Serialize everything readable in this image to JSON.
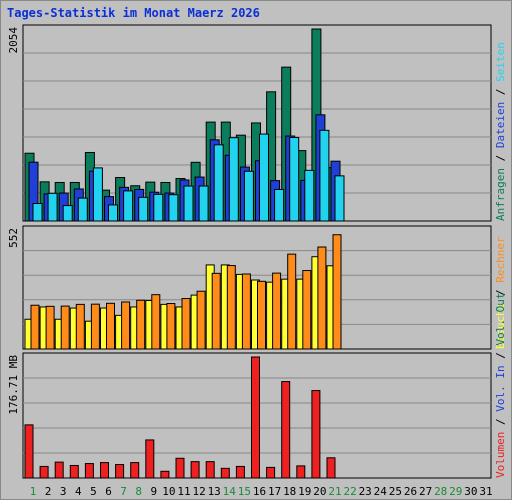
{
  "chart_data": [
    {
      "type": "bar",
      "title": "Tages-Statistik im Monat Maerz 2026",
      "panel": "top",
      "ymax_label": "2054",
      "ylim": [
        0,
        2054
      ],
      "grid": true,
      "categories": [
        "1",
        "2",
        "3",
        "4",
        "5",
        "6",
        "7",
        "8",
        "9",
        "10",
        "11",
        "12",
        "13",
        "14",
        "15",
        "16",
        "17",
        "18",
        "19",
        "20",
        "21",
        "22",
        "23",
        "24",
        "25",
        "26",
        "27",
        "28",
        "29",
        "30",
        "31"
      ],
      "legend_right": [
        {
          "name": "Anfragen",
          "color": "#0c7d5c"
        },
        {
          "name": "Dateien",
          "color": "#1f3fd6"
        },
        {
          "name": "Seiten",
          "color": "#22d3f0"
        }
      ],
      "series": [
        {
          "name": "Anfragen",
          "color": "#0c7d5c",
          "values": [
            725,
            419,
            412,
            412,
            733,
            330,
            465,
            377,
            416,
            412,
            454,
            628,
            1058,
            1058,
            918,
            1049,
            1382,
            1646,
            753,
            2054,
            573,
            null,
            null,
            null,
            null,
            null,
            null,
            null,
            null,
            null,
            null
          ]
        },
        {
          "name": "Dateien",
          "color": "#1f3fd6",
          "values": [
            629,
            290,
            299,
            343,
            533,
            261,
            360,
            338,
            308,
            299,
            439,
            470,
            869,
            703,
            577,
            645,
            432,
            909,
            435,
            1136,
            640,
            null,
            null,
            null,
            null,
            null,
            null,
            null,
            null,
            null,
            null
          ]
        },
        {
          "name": "Seiten",
          "color": "#22d3f0",
          "values": [
            187,
            296,
            165,
            245,
            568,
            172,
            322,
            253,
            285,
            281,
            374,
            374,
            815,
            891,
            532,
            930,
            337,
            893,
            542,
            970,
            483,
            null,
            null,
            null,
            null,
            null,
            null,
            null,
            null,
            null,
            null
          ]
        }
      ]
    },
    {
      "type": "bar",
      "panel": "middle",
      "ymax_label": "552",
      "ylim": [
        0,
        552
      ],
      "grid": true,
      "legend_right": [
        {
          "name": "Besuche",
          "color": "#ffff33"
        },
        {
          "name": "Rechner",
          "color": "#ff8c1a"
        }
      ],
      "series": [
        {
          "name": "Besuche",
          "color": "#ffff33",
          "values": [
            138,
            195,
            138,
            190,
            129,
            190,
            156,
            195,
            225,
            207,
            195,
            250,
            390,
            390,
            346,
            320,
            310,
            324,
            324,
            428,
            386,
            null,
            null,
            null,
            null,
            null,
            null,
            null,
            null,
            null,
            null
          ]
        },
        {
          "name": "Rechner",
          "color": "#ff8c1a",
          "values": [
            203,
            198,
            199,
            207,
            208,
            212,
            218,
            226,
            252,
            211,
            234,
            268,
            351,
            387,
            348,
            314,
            352,
            440,
            364,
            473,
            530,
            null,
            null,
            null,
            null,
            null,
            null,
            null,
            null,
            null,
            null
          ]
        }
      ]
    },
    {
      "type": "bar",
      "panel": "bottom",
      "ymax_label": "176.71 MB",
      "ylim": [
        0,
        176.71
      ],
      "grid": true,
      "legend_right": [
        {
          "name": "Volumen",
          "color": "#ee2020"
        },
        {
          "name": "Vol. In",
          "color": "#1f3fd6"
        },
        {
          "name": "Vol. Out",
          "color": "#0c7d5c"
        }
      ],
      "series": [
        {
          "name": "Volumen",
          "color": "#ee2020",
          "values": [
            77.6,
            16.9,
            23.2,
            18.3,
            21.1,
            22.5,
            19.7,
            22.5,
            55.6,
            9.8,
            28.8,
            23.9,
            23.9,
            14.1,
            16.9,
            176.7,
            15.5,
            140.8,
            17.7,
            127.7,
            29.5,
            null,
            null,
            null,
            null,
            null,
            null,
            null,
            null,
            null,
            null
          ]
        }
      ]
    }
  ],
  "x_axis_labels": [
    {
      "label": "1",
      "weekend": true
    },
    {
      "label": "2",
      "weekend": false
    },
    {
      "label": "3",
      "weekend": false
    },
    {
      "label": "4",
      "weekend": false
    },
    {
      "label": "5",
      "weekend": false
    },
    {
      "label": "6",
      "weekend": false
    },
    {
      "label": "7",
      "weekend": true
    },
    {
      "label": "8",
      "weekend": true
    },
    {
      "label": "9",
      "weekend": false
    },
    {
      "label": "10",
      "weekend": false
    },
    {
      "label": "11",
      "weekend": false
    },
    {
      "label": "12",
      "weekend": false
    },
    {
      "label": "13",
      "weekend": false
    },
    {
      "label": "14",
      "weekend": true
    },
    {
      "label": "15",
      "weekend": true
    },
    {
      "label": "16",
      "weekend": false
    },
    {
      "label": "17",
      "weekend": false
    },
    {
      "label": "18",
      "weekend": false
    },
    {
      "label": "19",
      "weekend": false
    },
    {
      "label": "20",
      "weekend": false
    },
    {
      "label": "21",
      "weekend": true
    },
    {
      "label": "22",
      "weekend": true
    },
    {
      "label": "23",
      "weekend": false
    },
    {
      "label": "24",
      "weekend": false
    },
    {
      "label": "25",
      "weekend": false
    },
    {
      "label": "26",
      "weekend": false
    },
    {
      "label": "27",
      "weekend": false
    },
    {
      "label": "28",
      "weekend": true
    },
    {
      "label": "29",
      "weekend": true
    },
    {
      "label": "30",
      "weekend": false
    },
    {
      "label": "31",
      "weekend": false
    }
  ],
  "colors": {
    "background": "#c0c0c0",
    "plot_bg": "#c0c0c0",
    "grid": "#888888",
    "title": "#0a2ed8",
    "axis_text": "#000000",
    "weekend_text": "#1a8a3a",
    "separator": "#000000"
  }
}
